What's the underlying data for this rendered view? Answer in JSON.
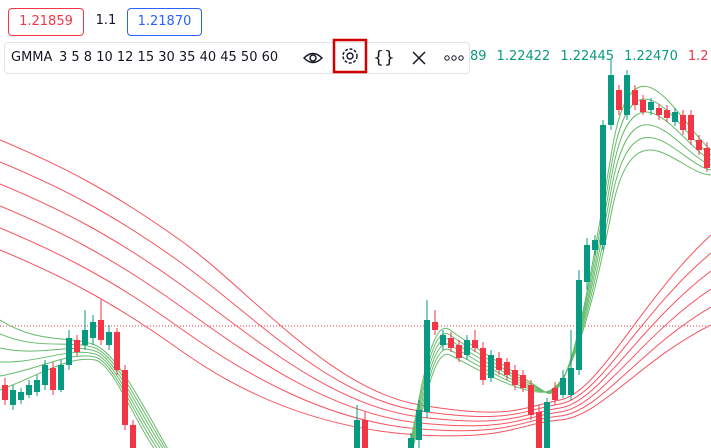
{
  "bid": {
    "price": "1.21859"
  },
  "spread": "1.1",
  "ask": {
    "price": "1.21870"
  },
  "legend": {
    "name": "GMMA",
    "periods": "3 5 8 10 12 15 30 35 40 45 50 60",
    "values": [
      "89",
      "1.22422",
      "1.22445",
      "1.22470",
      "1.2"
    ]
  }
}
